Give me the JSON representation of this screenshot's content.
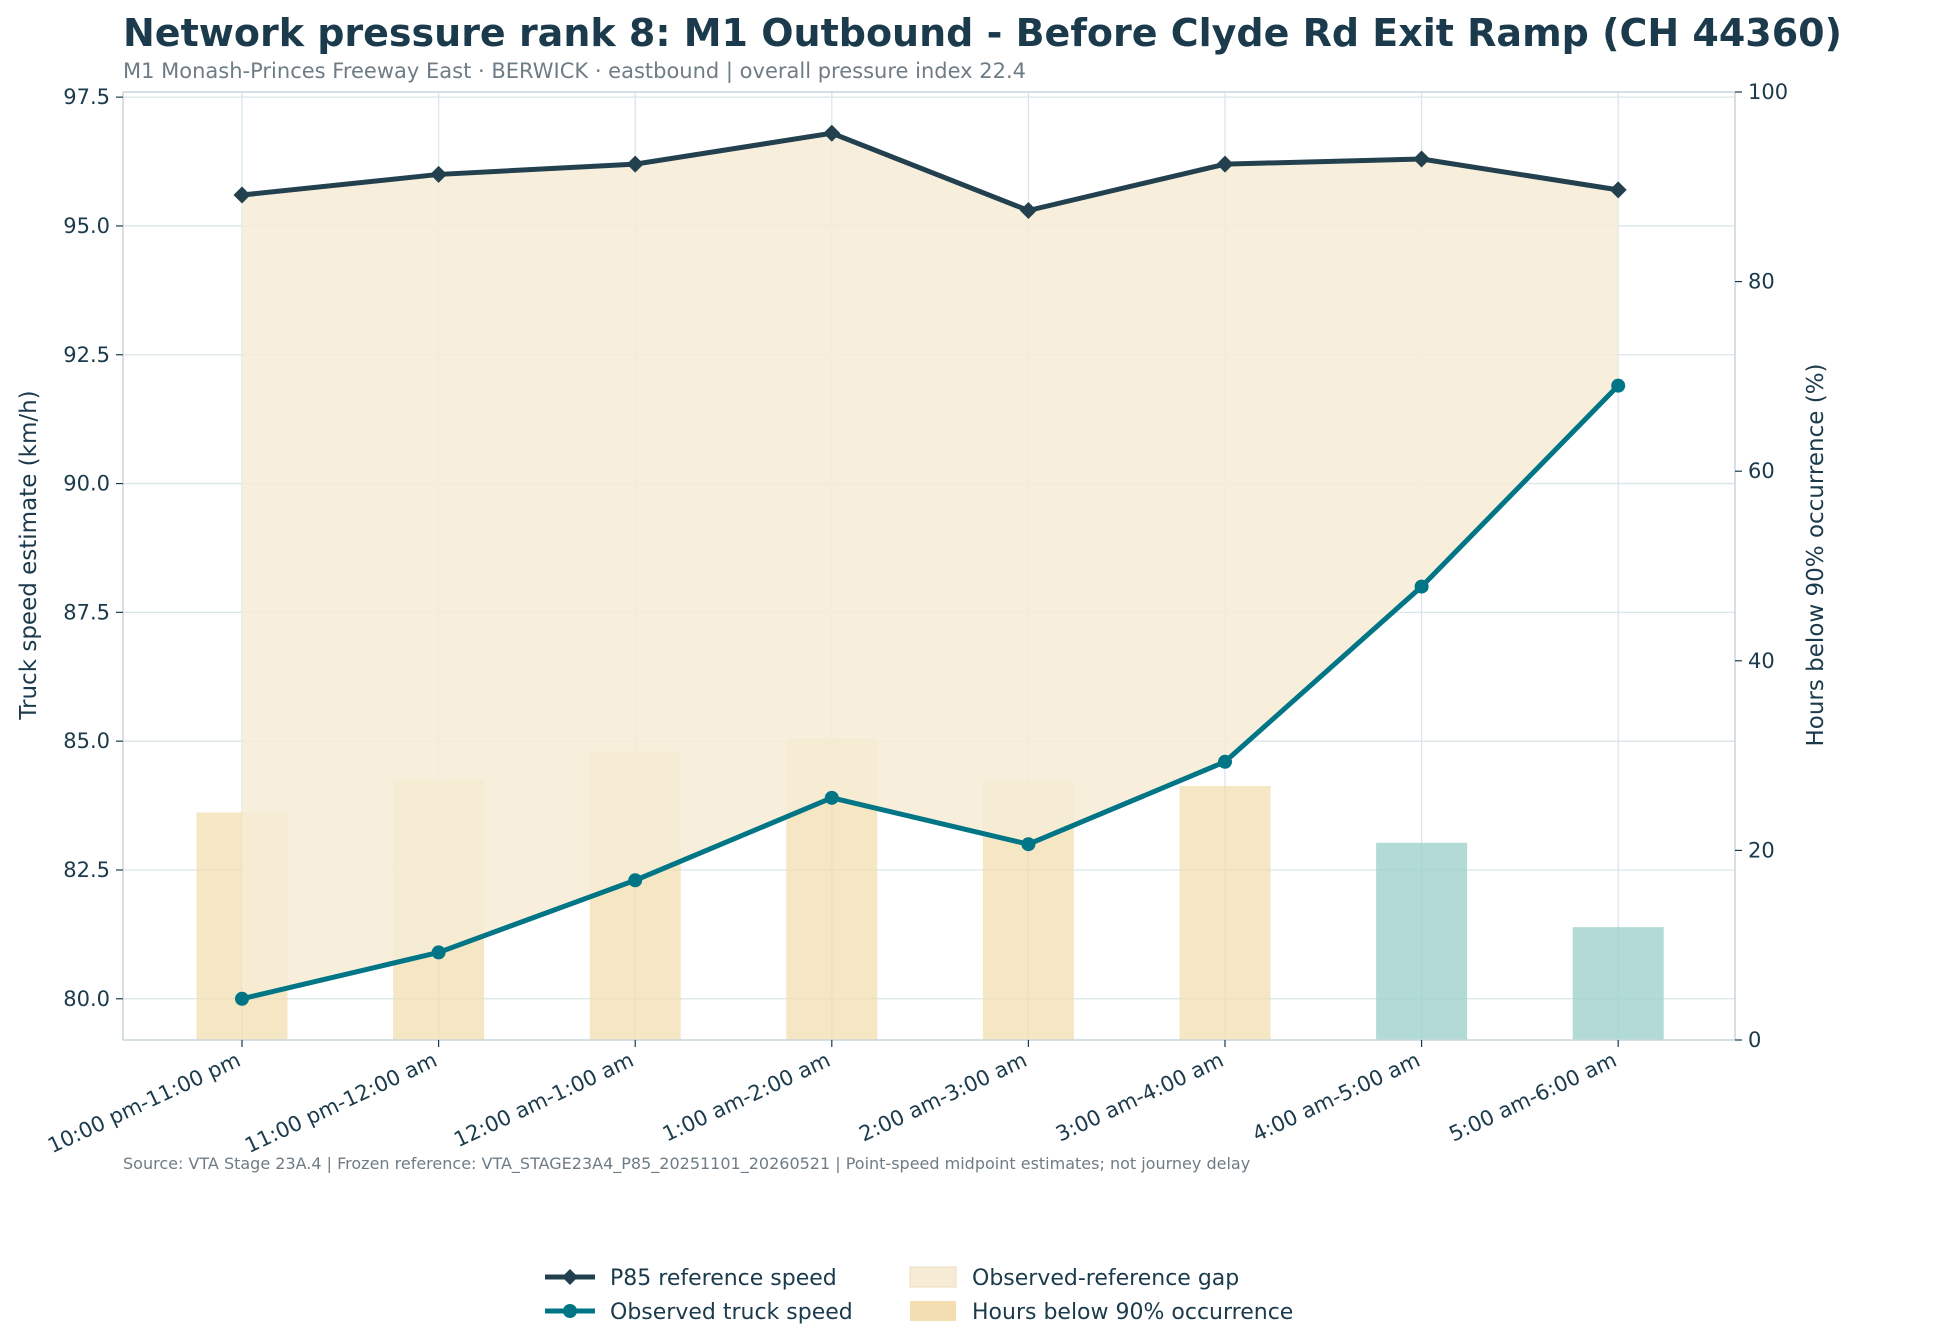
{
  "title": "Network pressure rank 8: M1 Outbound - Before Clyde Rd Exit Ramp (CH 44360)",
  "subtitle": "M1 Monash-Princes Freeway East · BERWICK · eastbound | overall pressure index 22.4",
  "source_note": "Source: VTA Stage 23A.4 | Frozen reference: VTA_STAGE23A4_P85_20251101_20260521 | Point-speed midpoint estimates; not journey delay",
  "colors": {
    "reference": "#23404f",
    "observed": "#007585",
    "gap_fill": "#f6ecd6",
    "bar_amber": "#f2deb0",
    "bar_teal": "#9fd2cc",
    "grid": "#d9e6ea"
  },
  "chart_data": {
    "type": "line",
    "categories": [
      "10:00 pm-11:00 pm",
      "11:00 pm-12:00 am",
      "12:00 am-1:00 am",
      "1:00 am-2:00 am",
      "2:00 am-3:00 am",
      "3:00 am-4:00 am",
      "4:00 am-5:00 am",
      "5:00 am-6:00 am"
    ],
    "series": [
      {
        "name": "P85 reference speed",
        "axis": "left",
        "values": [
          95.6,
          96.0,
          96.2,
          96.8,
          95.3,
          96.2,
          96.3,
          95.7
        ]
      },
      {
        "name": "Observed truck speed",
        "axis": "left",
        "values": [
          80.0,
          80.9,
          82.3,
          83.9,
          83.0,
          84.6,
          88.0,
          91.9
        ]
      },
      {
        "name": "Hours below 90% occurrence",
        "axis": "right",
        "type": "bar",
        "values": [
          24,
          27.5,
          30.5,
          31.8,
          27.3,
          26.8,
          20.8,
          11.9
        ],
        "colors": [
          "amber",
          "amber",
          "amber",
          "amber",
          "amber",
          "amber",
          "teal",
          "teal"
        ]
      }
    ],
    "area": {
      "name": "Observed-reference gap"
    },
    "ylabel": "Truck speed estimate (km/h)",
    "y2label": "Hours below 90% occurrence (%)",
    "ylim": [
      79.2,
      97.6
    ],
    "y2lim": [
      0,
      100
    ],
    "yticks": [
      "80.0",
      "82.5",
      "85.0",
      "87.5",
      "90.0",
      "92.5",
      "95.0",
      "97.5"
    ],
    "y2ticks": [
      "0",
      "20",
      "40",
      "60",
      "80",
      "100"
    ],
    "grid": true,
    "legend": {
      "position": "bottom-center",
      "entries": [
        "P85 reference speed",
        "Observed truck speed",
        "Observed-reference gap",
        "Hours below 90% occurrence"
      ]
    }
  }
}
